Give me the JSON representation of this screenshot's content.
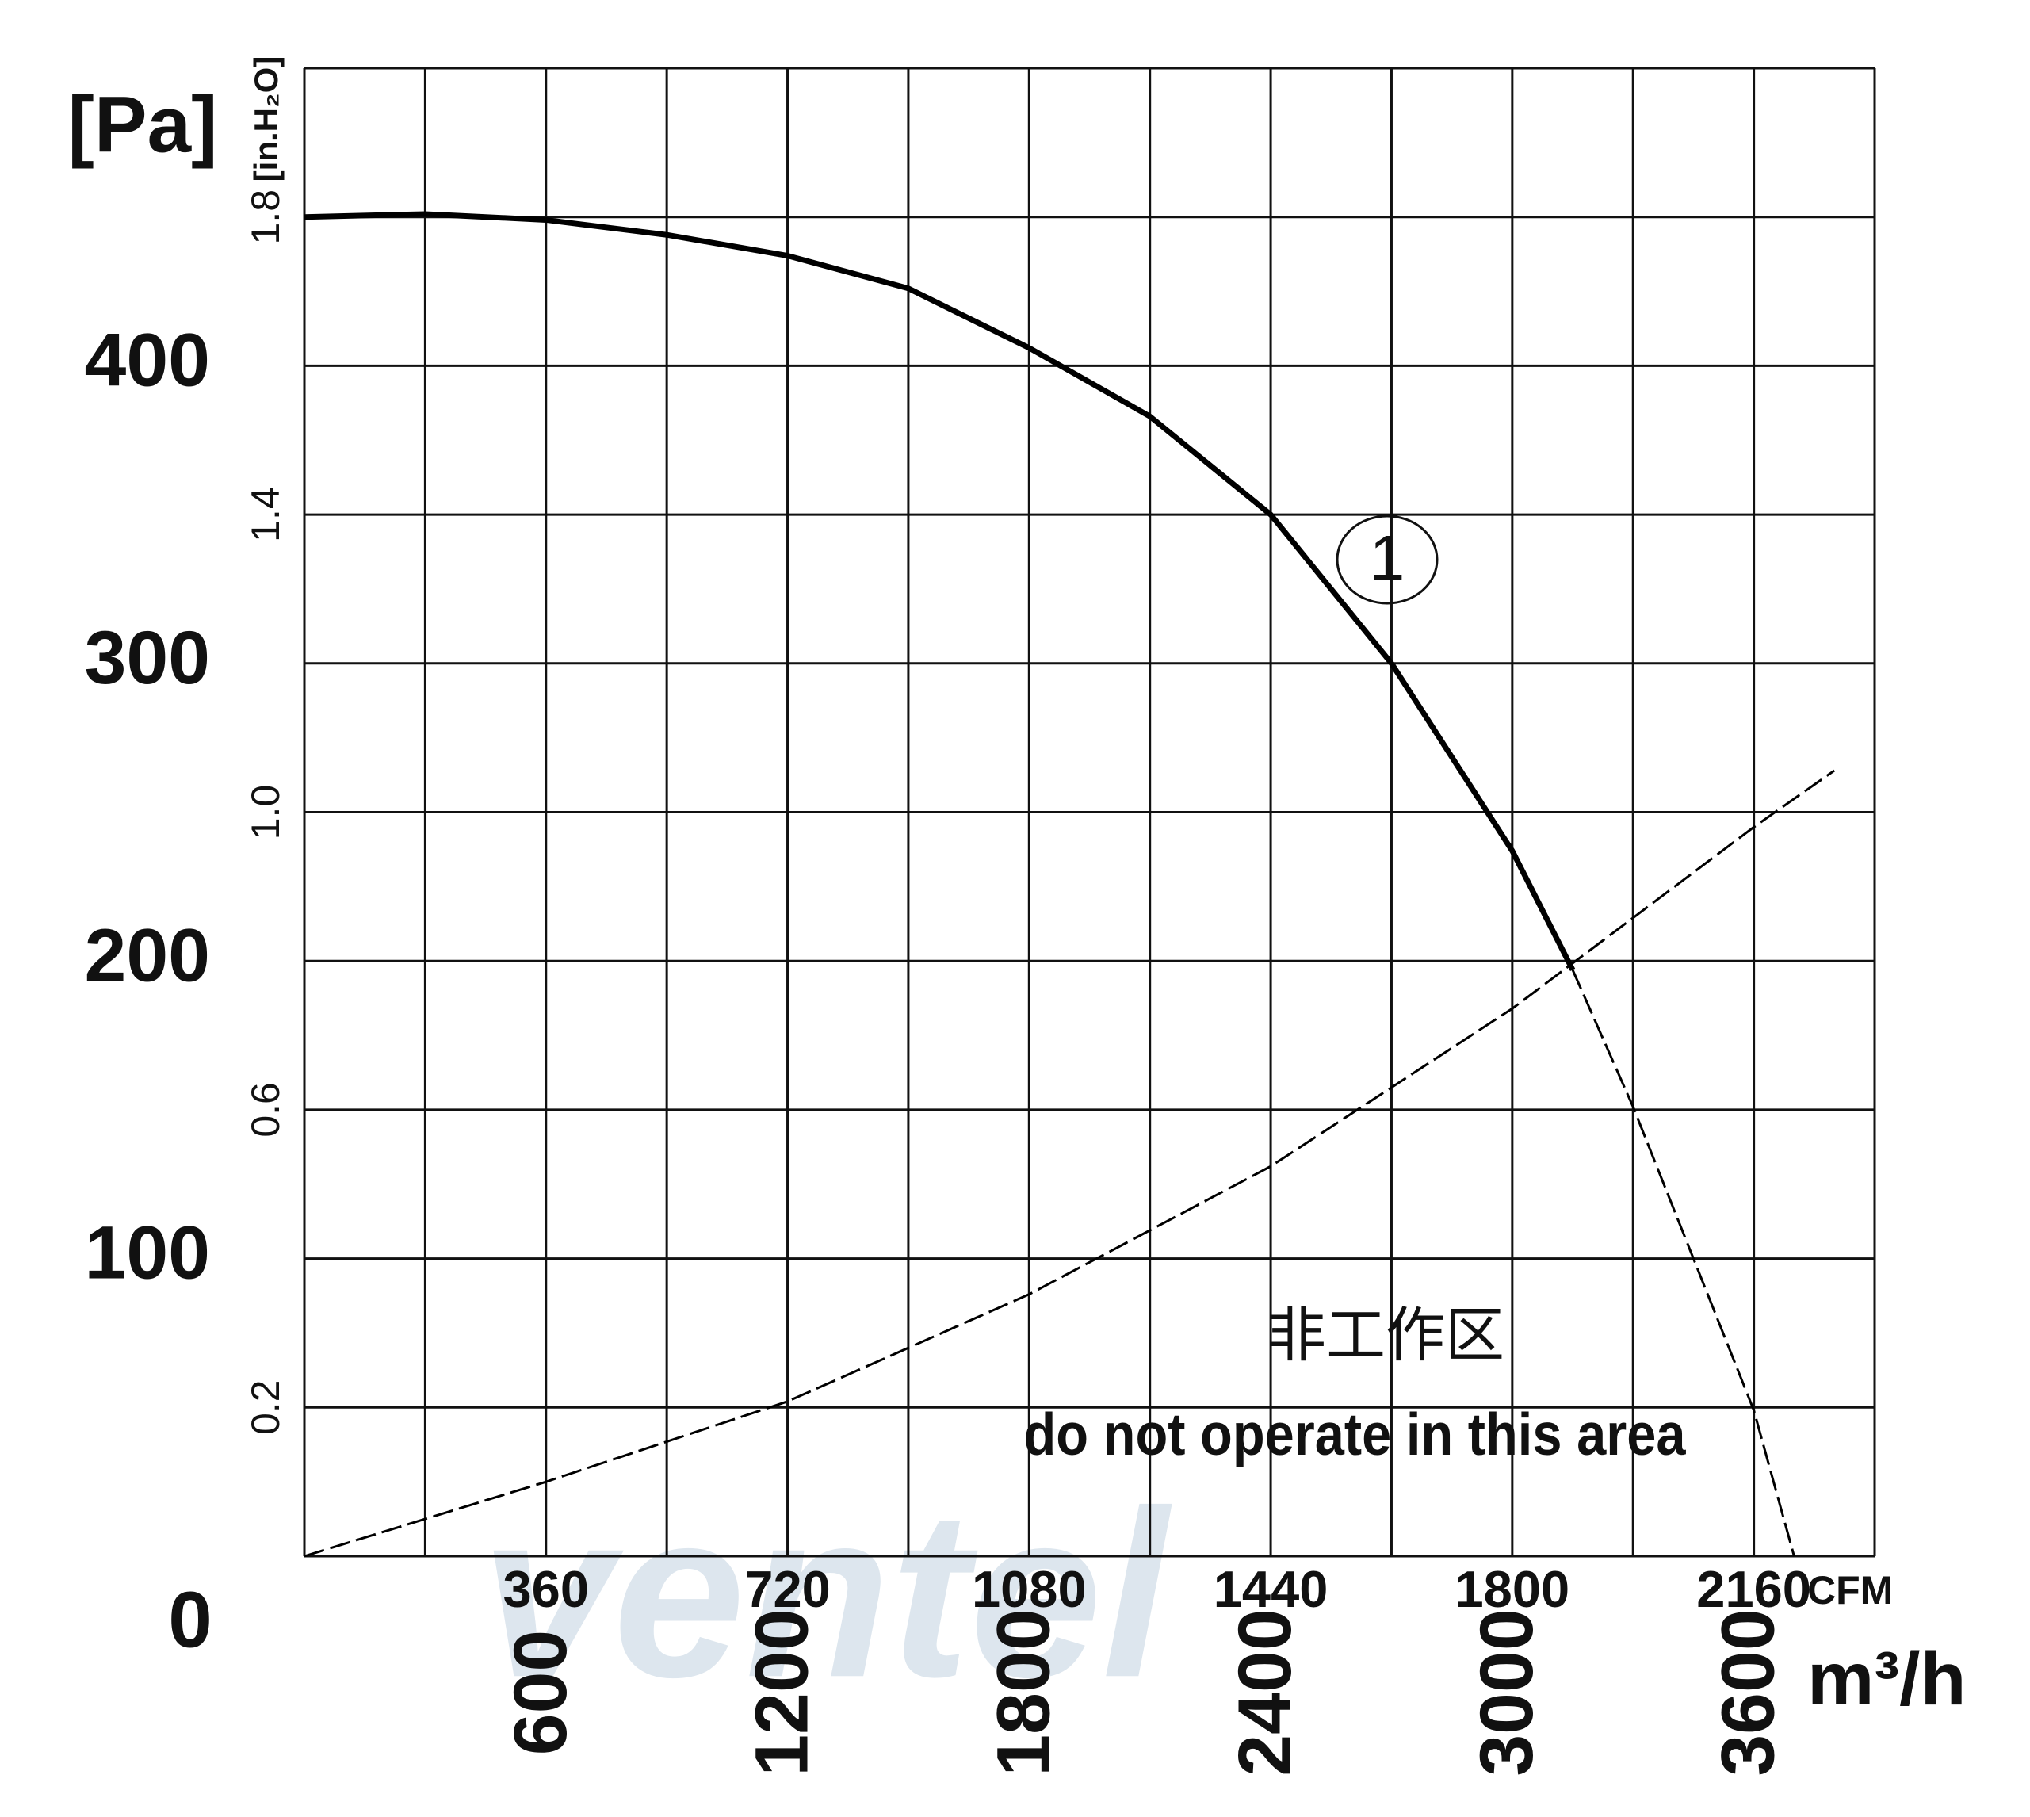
{
  "chart_data": {
    "type": "line",
    "y_label": "[Pa]",
    "y2_label": "[in.H₂O]",
    "x_label": "m³/h",
    "x2_label": "CFM",
    "annotations": [
      "1",
      "非工作区",
      "do not operate in this area"
    ],
    "watermark": "ventel",
    "origin_label": "0",
    "xlim": [
      0,
      3900
    ],
    "xticks": [
      600,
      1200,
      1800,
      2400,
      3000,
      3600
    ],
    "x2lim": [
      0,
      2340
    ],
    "x2ticks": [
      360,
      720,
      1080,
      1440,
      1800,
      2160
    ],
    "ylim": [
      0,
      500
    ],
    "yticks": [
      100,
      200,
      300,
      400
    ],
    "y2lim": [
      0,
      2.0
    ],
    "y2ticks": [
      0.2,
      0.6,
      {
        "value": 1,
        "label": "1.0"
      },
      1.4,
      1.8
    ],
    "xgrid": [
      0,
      300,
      600,
      900,
      1200,
      1500,
      1800,
      2100,
      2400,
      2700,
      3000,
      3300,
      3600,
      3900
    ],
    "ygrid": [
      0,
      50,
      100,
      150,
      200,
      250,
      300,
      350,
      400,
      450,
      500
    ],
    "color": "#000000",
    "series": [
      {
        "style": "solid",
        "x": [
          0,
          300,
          600,
          900,
          1200,
          1500,
          1800,
          2100,
          2400,
          2700,
          3000,
          3150
        ],
        "values": [
          450,
          451,
          449,
          444,
          437,
          426,
          406,
          383,
          350,
          300,
          237,
          197
        ]
      },
      {
        "style": "dashed",
        "x": [
          3150,
          3300,
          3600,
          3700
        ],
        "values": [
          197,
          151,
          49,
          0
        ]
      },
      {
        "style": "dashed",
        "x": [
          0,
          600,
          1200,
          1800,
          2400,
          3000,
          3600,
          3800
        ],
        "values": [
          0,
          25,
          52,
          88,
          131,
          184,
          245,
          264
        ]
      }
    ]
  }
}
